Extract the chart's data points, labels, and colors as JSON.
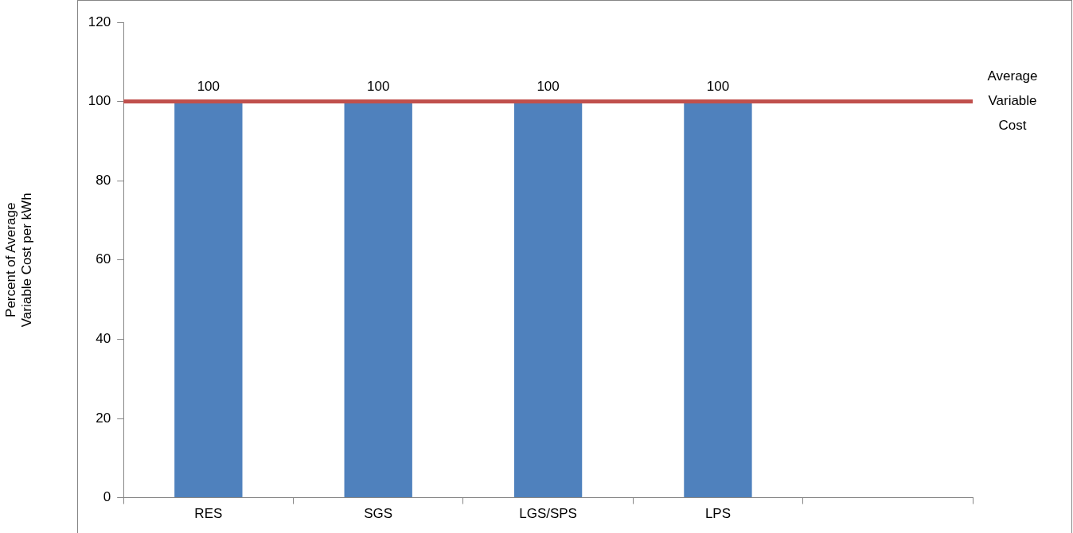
{
  "chart_data": {
    "type": "bar",
    "ylabel": "Percent of Average\nVariable Cost per kWh",
    "categories": [
      "RES",
      "SGS",
      "LGS/SPS",
      "LPS",
      null
    ],
    "series": [
      {
        "color": "#4f81bd",
        "values": [
          100,
          100,
          100,
          100,
          null
        ]
      }
    ],
    "ylim": [
      0,
      120
    ],
    "yticks": [
      0,
      20,
      40,
      60,
      80,
      100,
      120
    ],
    "grid": false,
    "legend": false,
    "data_labels": true,
    "ref_lines": [
      {
        "axis": "y",
        "value": 100,
        "label": "Average Variable Cost",
        "color": "#c0504d"
      }
    ]
  }
}
